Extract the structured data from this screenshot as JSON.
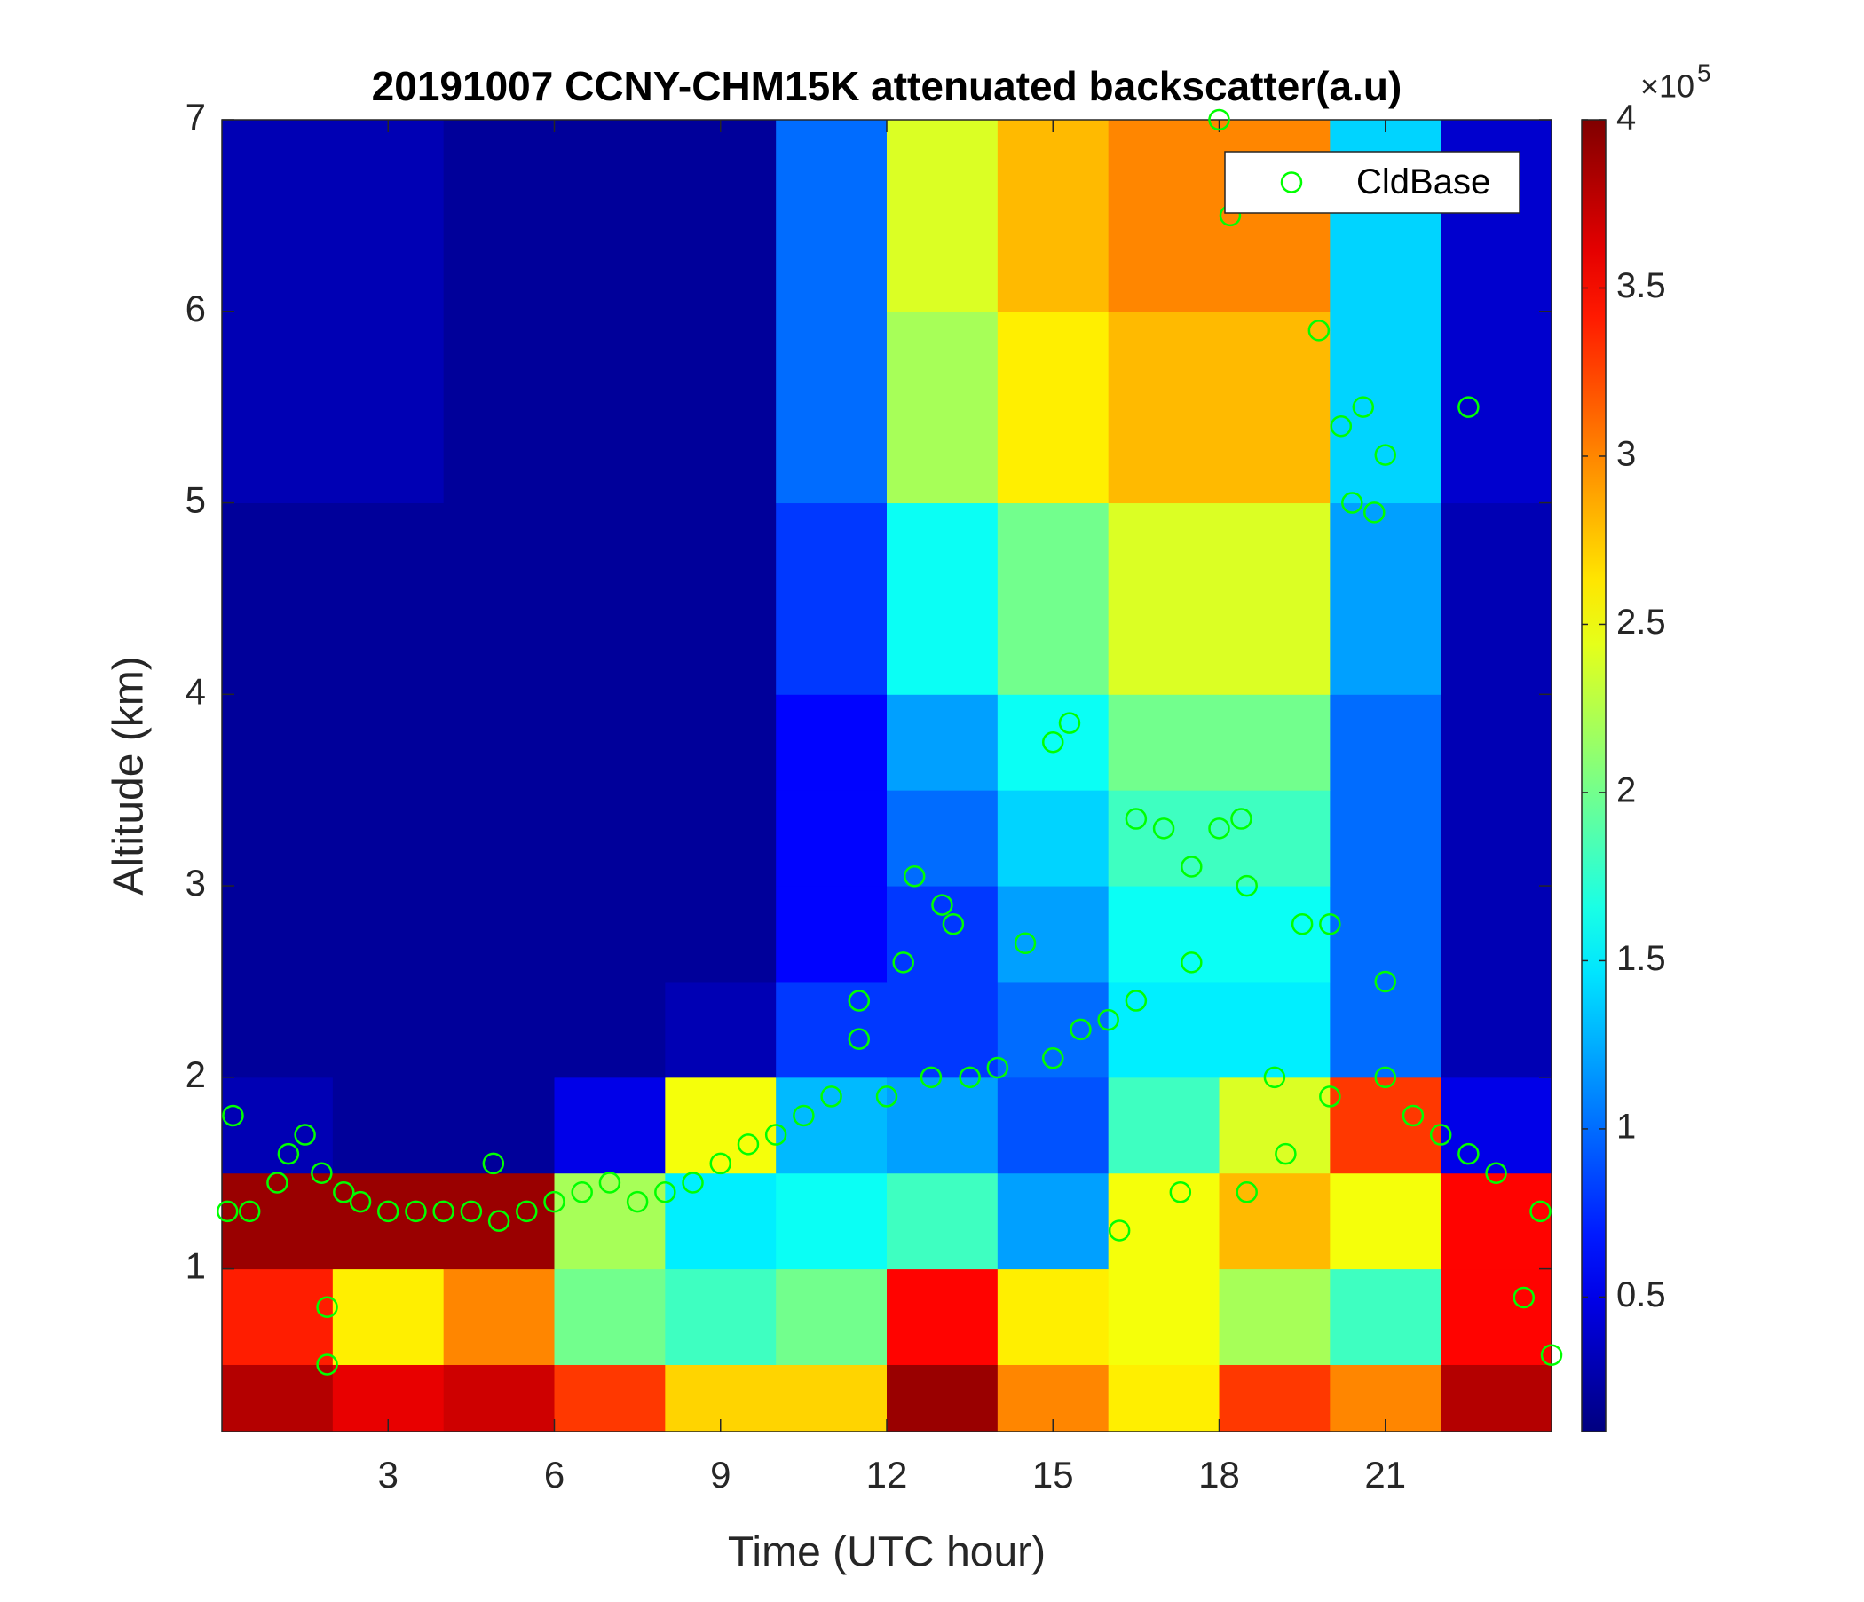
{
  "chart_data": {
    "type": "heatmap",
    "title": "20191007 CCNY-CHM15K attenuated backscatter(a.u)",
    "xlabel": "Time (UTC hour)",
    "ylabel": "Altitude (km)",
    "xlim": [
      0,
      24
    ],
    "xticks": [
      3,
      6,
      9,
      12,
      15,
      18,
      21
    ],
    "ylim": [
      0.15,
      7
    ],
    "yticks": [
      1,
      2,
      3,
      4,
      5,
      6,
      7
    ],
    "xbins": [
      0,
      2,
      4,
      6,
      8,
      10,
      12,
      14,
      16,
      18,
      20,
      22,
      24
    ],
    "ybins": [
      0.15,
      0.5,
      1,
      1.5,
      2,
      2.5,
      3,
      3.5,
      4,
      5,
      6,
      7
    ],
    "z": [
      [
        3.8,
        3.6,
        3.7,
        3.3,
        2.7,
        2.7,
        3.9,
        3.0,
        2.6,
        3.3,
        3.0,
        3.8
      ],
      [
        3.4,
        2.6,
        3.0,
        2.0,
        1.8,
        2.0,
        3.5,
        2.6,
        2.5,
        2.2,
        1.8,
        3.5
      ],
      [
        3.9,
        3.9,
        3.9,
        2.2,
        1.5,
        1.6,
        1.8,
        1.2,
        2.5,
        2.8,
        2.5,
        3.5
      ],
      [
        0.3,
        0.2,
        0.2,
        0.5,
        2.5,
        1.3,
        1.2,
        0.9,
        1.8,
        2.4,
        3.3,
        0.5
      ],
      [
        0.2,
        0.2,
        0.2,
        0.2,
        0.3,
        0.8,
        0.8,
        1.0,
        1.5,
        1.5,
        1.0,
        0.3
      ],
      [
        0.2,
        0.2,
        0.2,
        0.2,
        0.2,
        0.6,
        0.8,
        1.2,
        1.6,
        1.6,
        1.0,
        0.3
      ],
      [
        0.2,
        0.2,
        0.2,
        0.2,
        0.2,
        0.6,
        1.0,
        1.4,
        1.8,
        1.8,
        1.0,
        0.3
      ],
      [
        0.2,
        0.2,
        0.2,
        0.2,
        0.2,
        0.6,
        1.2,
        1.6,
        2.0,
        2.0,
        1.0,
        0.3
      ],
      [
        0.2,
        0.2,
        0.2,
        0.2,
        0.2,
        0.8,
        1.6,
        2.0,
        2.4,
        2.4,
        1.2,
        0.3
      ],
      [
        0.3,
        0.3,
        0.2,
        0.2,
        0.2,
        1.0,
        2.2,
        2.6,
        2.8,
        2.8,
        1.4,
        0.4
      ],
      [
        0.3,
        0.3,
        0.2,
        0.2,
        0.2,
        1.0,
        2.4,
        2.8,
        3.0,
        3.0,
        1.4,
        0.4
      ]
    ],
    "colormap": "jet",
    "clim": [
      0.1,
      4
    ],
    "cticks": [
      0.5,
      1,
      1.5,
      2,
      2.5,
      3,
      3.5,
      4
    ],
    "colorbar_scale_label": "×10",
    "colorbar_scale_exponent": "5",
    "legend": "upper right",
    "series": [
      {
        "name": "CldBase",
        "type": "scatter",
        "color": "#00ff00",
        "x": [
          0.1,
          0.2,
          0.5,
          1,
          1.2,
          1.5,
          1.8,
          1.9,
          1.9,
          2.2,
          2.5,
          3,
          3.5,
          4,
          4.5,
          4.9,
          5,
          5.5,
          6,
          6.5,
          7,
          7.5,
          8,
          8.5,
          9,
          9.5,
          10,
          10.5,
          11,
          11.5,
          11.5,
          12,
          12.3,
          12.5,
          12.8,
          13,
          13.2,
          13.5,
          14,
          14.5,
          15,
          15,
          15.3,
          15.5,
          16,
          16.2,
          16.5,
          16.5,
          17,
          17.3,
          17.5,
          17.5,
          18,
          18,
          18.2,
          18.4,
          18.5,
          18.5,
          19,
          19.2,
          19.5,
          19.8,
          20,
          20,
          20.2,
          20.4,
          20.6,
          20.8,
          21,
          21,
          21,
          21.5,
          22,
          22.5,
          22.5,
          23,
          23.5,
          23.8,
          24
        ],
        "y": [
          1.3,
          1.8,
          1.3,
          1.45,
          1.6,
          1.7,
          1.5,
          0.8,
          0.5,
          1.4,
          1.35,
          1.3,
          1.3,
          1.3,
          1.3,
          1.55,
          1.25,
          1.3,
          1.35,
          1.4,
          1.45,
          1.35,
          1.4,
          1.45,
          1.55,
          1.65,
          1.7,
          1.8,
          1.9,
          2.2,
          2.4,
          1.9,
          2.6,
          3.05,
          2.0,
          2.9,
          2.8,
          2.0,
          2.05,
          2.7,
          2.1,
          3.75,
          3.85,
          2.25,
          2.3,
          1.2,
          2.4,
          3.35,
          3.3,
          1.4,
          3.1,
          2.6,
          3.3,
          7.0,
          6.5,
          3.35,
          3.0,
          1.4,
          2.0,
          1.6,
          2.8,
          5.9,
          2.8,
          1.9,
          5.4,
          5.0,
          5.5,
          4.95,
          5.25,
          2.5,
          2.0,
          1.8,
          1.7,
          5.5,
          1.6,
          1.5,
          0.85,
          1.3,
          0.55
        ]
      }
    ]
  }
}
